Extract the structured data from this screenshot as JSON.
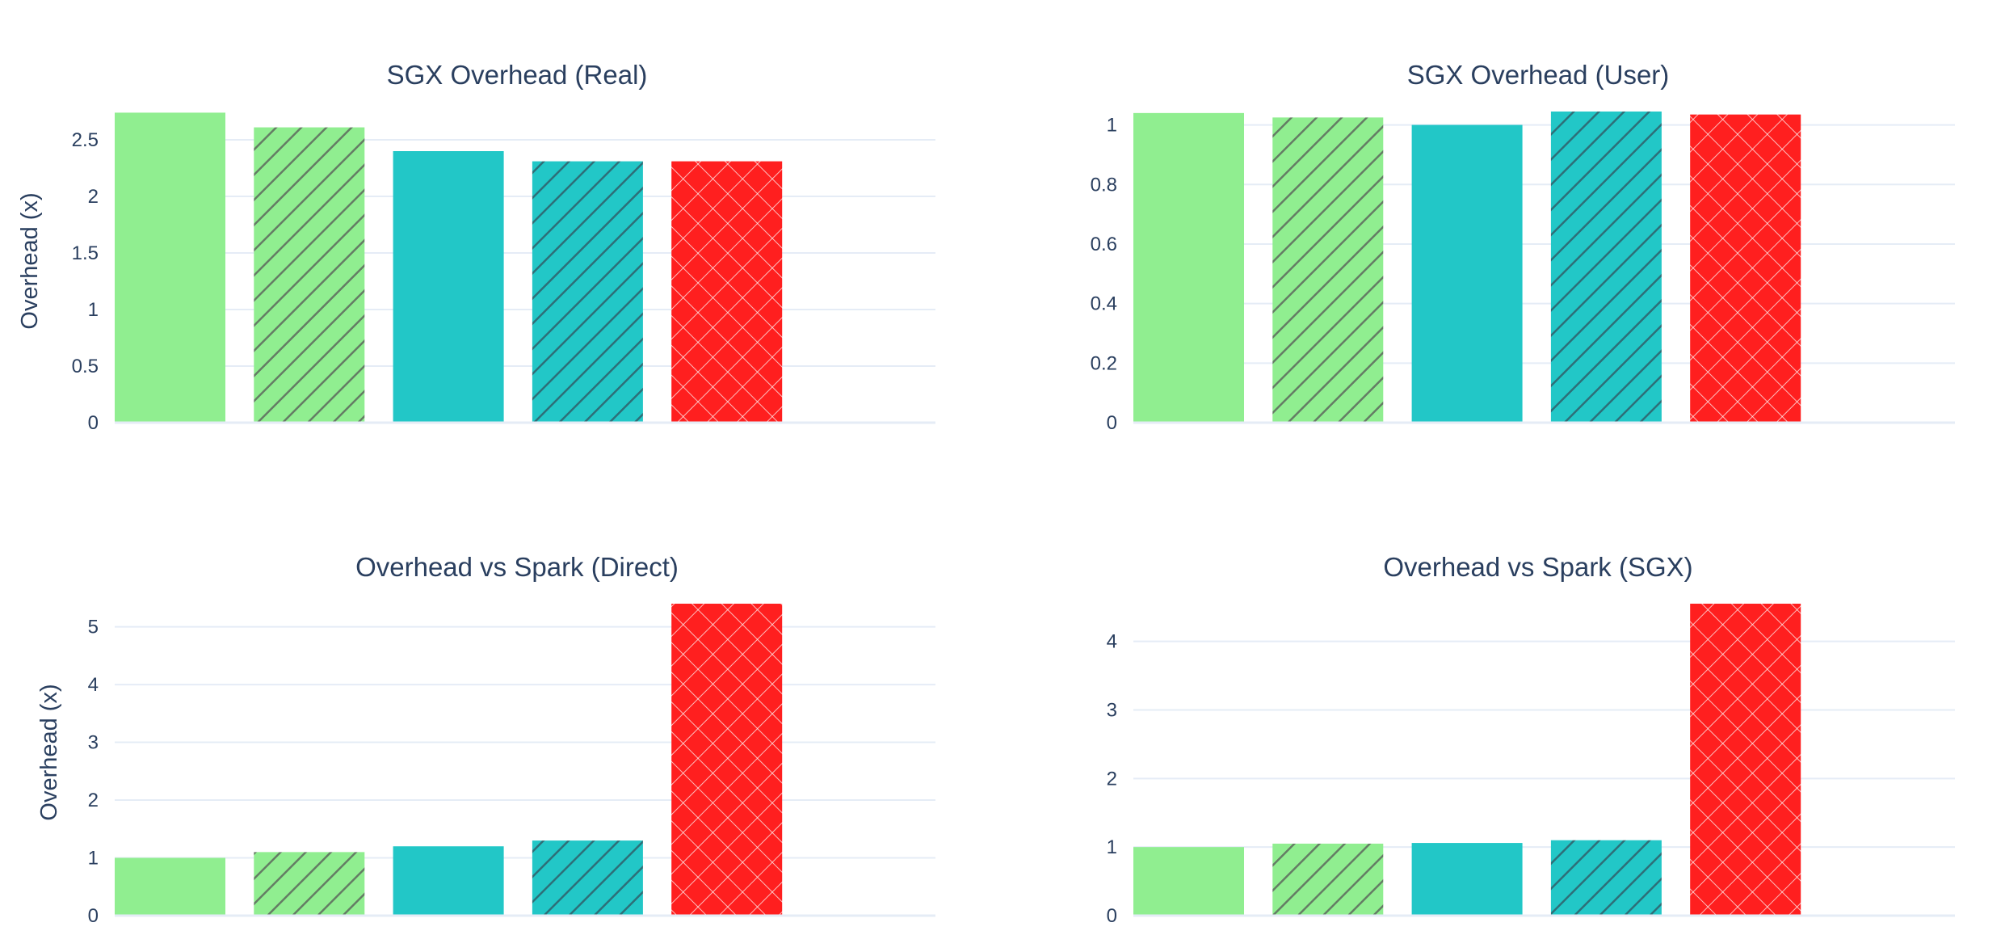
{
  "colors": {
    "background": "#ffffff",
    "text": "#2a3f5f",
    "grid": "#e5ecf6",
    "light_green": "#90ee90",
    "teal": "#22c7c7",
    "red": "#ff1f1f",
    "hatch_dark": "#555555",
    "hatch_light": "#ffffff"
  },
  "chart_data": [
    {
      "type": "bar",
      "title": "SGX Overhead (Real)",
      "ylabel": "Overhead (x)",
      "ylim": [
        0,
        2.75
      ],
      "yticks": [
        0,
        0.5,
        1,
        1.5,
        2,
        2.5
      ],
      "yticklabels": [
        "0",
        "0.5",
        "1",
        "1.5",
        "2",
        "2.5"
      ],
      "grid": true,
      "values": [
        2.74,
        2.61,
        2.4,
        2.31,
        2.31
      ]
    },
    {
      "type": "bar",
      "title": "SGX Overhead (User)",
      "ylabel": "",
      "ylim": [
        0,
        1.045
      ],
      "yticks": [
        0,
        0.2,
        0.4,
        0.6,
        0.8,
        1
      ],
      "yticklabels": [
        "0",
        "0.2",
        "0.4",
        "0.6",
        "0.8",
        "1"
      ],
      "grid": true,
      "values": [
        1.04,
        1.025,
        1.0,
        1.045,
        1.035
      ]
    },
    {
      "type": "bar",
      "title": "Overhead vs Spark (Direct)",
      "ylabel": "Overhead (x)",
      "ylim": [
        0,
        5.4
      ],
      "yticks": [
        0,
        1,
        2,
        3,
        4,
        5
      ],
      "yticklabels": [
        "0",
        "1",
        "2",
        "3",
        "4",
        "5"
      ],
      "grid": true,
      "values": [
        1.0,
        1.1,
        1.2,
        1.3,
        5.4
      ]
    },
    {
      "type": "bar",
      "title": "Overhead vs Spark (SGX)",
      "ylabel": "",
      "ylim": [
        0,
        4.55
      ],
      "yticks": [
        0,
        1,
        2,
        3,
        4
      ],
      "yticklabels": [
        "0",
        "1",
        "2",
        "3",
        "4"
      ],
      "grid": true,
      "values": [
        1.0,
        1.05,
        1.06,
        1.1,
        4.55
      ]
    }
  ],
  "bar_styles": [
    {
      "fill": "light_green",
      "pattern": "none"
    },
    {
      "fill": "light_green",
      "pattern": "diagonal"
    },
    {
      "fill": "teal",
      "pattern": "none"
    },
    {
      "fill": "teal",
      "pattern": "diagonal"
    },
    {
      "fill": "red",
      "pattern": "crosshatch"
    }
  ]
}
